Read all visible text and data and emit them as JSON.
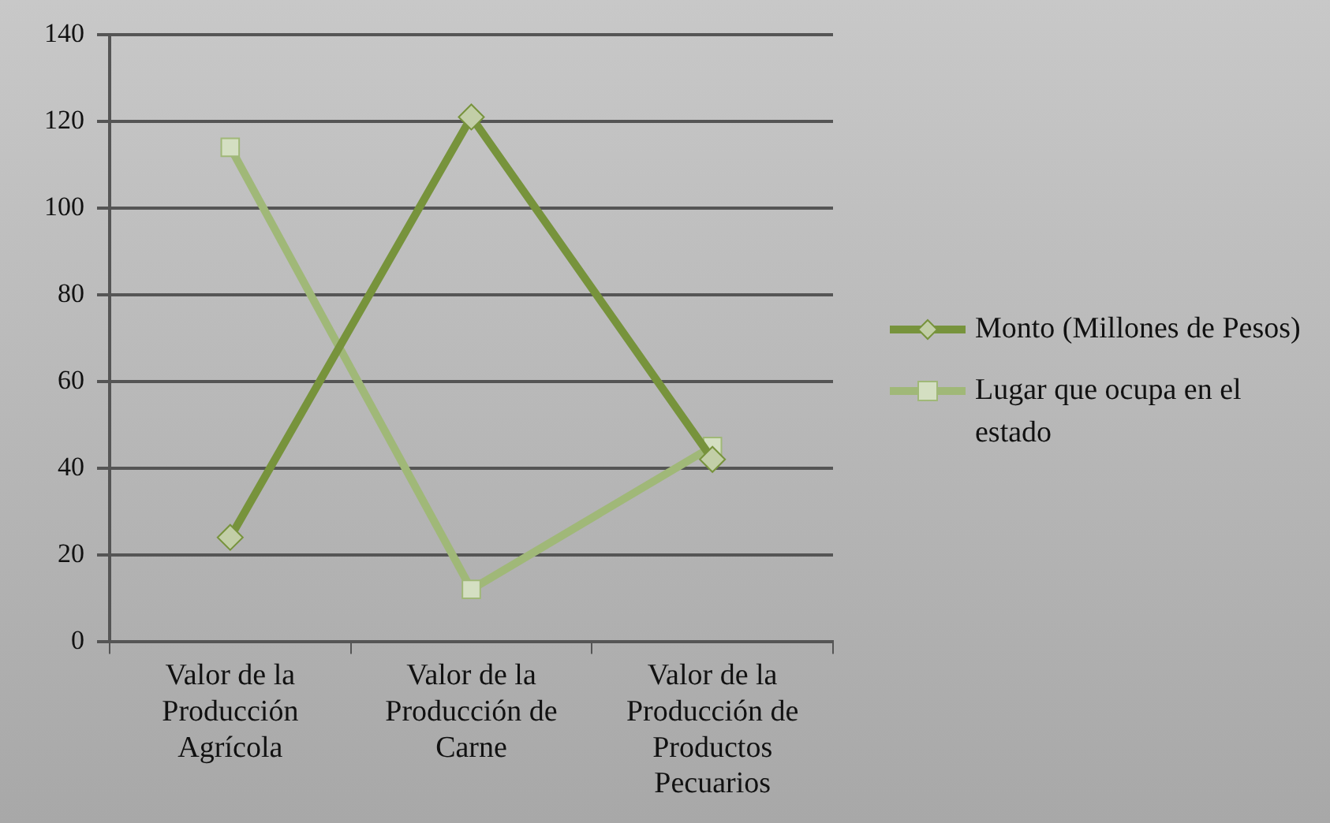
{
  "chart_data": {
    "type": "line",
    "categories": [
      "Valor de la Producción Agrícola",
      "Valor de la Producción de Carne",
      "Valor de la Producción de Productos Pecuarios"
    ],
    "series": [
      {
        "name": "Monto (Millones de Pesos)",
        "color": "#77933c",
        "values": [
          24,
          121,
          42
        ],
        "marker": "diamond"
      },
      {
        "name": "Lugar que ocupa en el estado",
        "color": "#a0b878",
        "values": [
          114,
          12,
          45
        ],
        "marker": "square"
      }
    ],
    "ylim": [
      0,
      140
    ],
    "yticks": [
      0,
      20,
      40,
      60,
      80,
      100,
      120,
      140
    ],
    "grid": "y",
    "legend": "right",
    "line_style": "solid"
  }
}
